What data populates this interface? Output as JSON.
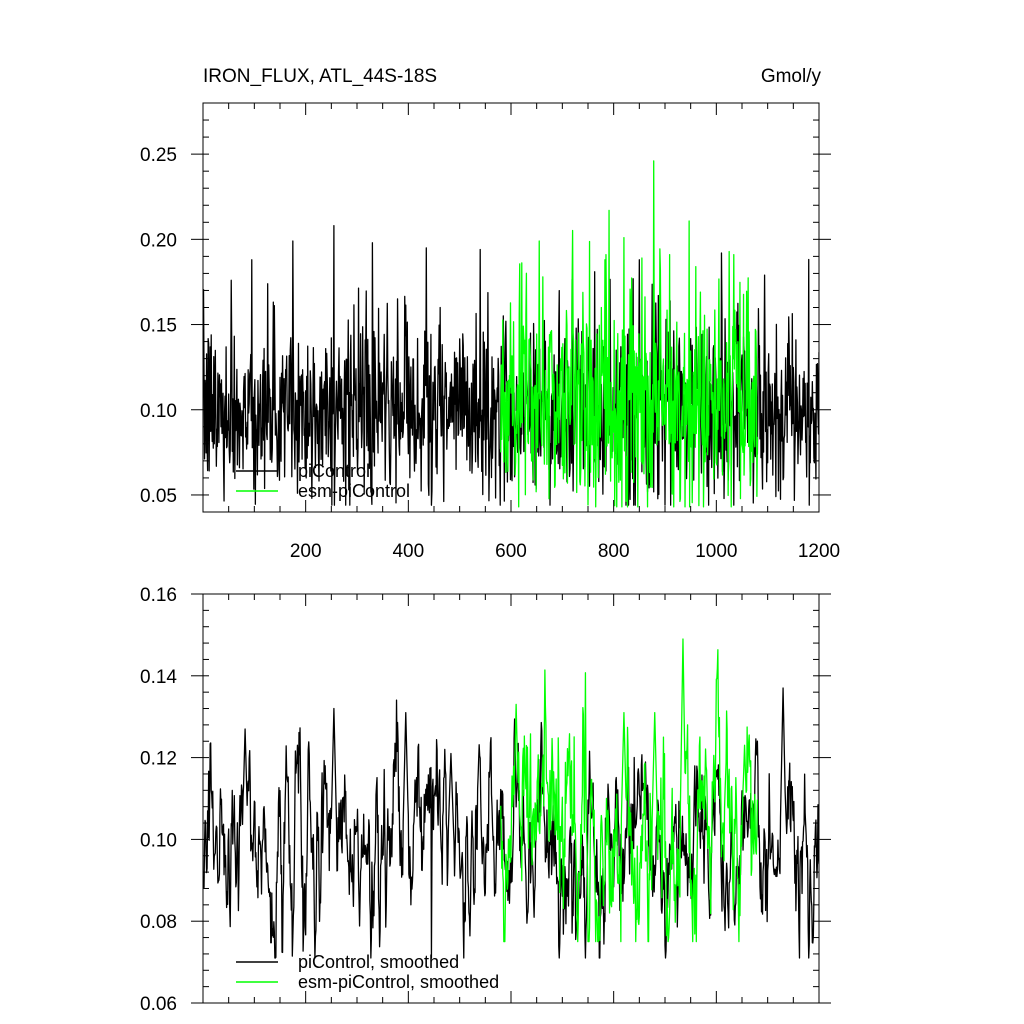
{
  "chart_data": [
    {
      "type": "line",
      "title": "IRON_FLUX, ATL_44S-18S",
      "units": "Gmol/y",
      "xlabel": "",
      "ylabel": "",
      "xlim": [
        0,
        1200
      ],
      "ylim": [
        0.04,
        0.28
      ],
      "x_ticks": [
        200,
        400,
        600,
        800,
        1000,
        1200
      ],
      "y_ticks": [
        0.05,
        0.1,
        0.15,
        0.2,
        0.25
      ],
      "y_tick_labels": [
        "0.05",
        "0.10",
        "0.15",
        "0.20",
        "0.25"
      ],
      "legend_placement": "bottom-left",
      "grid": false,
      "series": [
        {
          "name": "piControl",
          "color": "#000000",
          "x_range": [
            1,
            1200
          ],
          "mean": 0.1,
          "min": 0.044,
          "max": 0.208,
          "peaks": [
            {
              "x": 95,
              "y": 0.188
            },
            {
              "x": 175,
              "y": 0.199
            },
            {
              "x": 255,
              "y": 0.208
            },
            {
              "x": 330,
              "y": 0.198
            },
            {
              "x": 435,
              "y": 0.195
            },
            {
              "x": 540,
              "y": 0.194
            },
            {
              "x": 850,
              "y": 0.188
            },
            {
              "x": 1010,
              "y": 0.192
            }
          ]
        },
        {
          "name": "esm-piControl",
          "color": "#00ff00",
          "x_range": [
            580,
            1080
          ],
          "mean": 0.105,
          "min": 0.043,
          "max": 0.246,
          "peaks": [
            {
              "x": 655,
              "y": 0.199
            },
            {
              "x": 785,
              "y": 0.191
            },
            {
              "x": 820,
              "y": 0.201
            },
            {
              "x": 855,
              "y": 0.189
            },
            {
              "x": 878,
              "y": 0.246
            },
            {
              "x": 960,
              "y": 0.184
            }
          ]
        }
      ]
    },
    {
      "type": "line",
      "title": "",
      "xlabel": "",
      "ylabel": "",
      "xlim": [
        0,
        1200
      ],
      "ylim": [
        0.06,
        0.16
      ],
      "y_ticks": [
        0.06,
        0.08,
        0.1,
        0.12,
        0.14,
        0.16
      ],
      "y_tick_labels": [
        "0.06",
        "0.08",
        "0.10",
        "0.12",
        "0.14",
        "0.16"
      ],
      "legend_placement": "bottom-left",
      "grid": false,
      "series": [
        {
          "name": "piControl, smoothed",
          "color": "#000000",
          "x_range": [
            1,
            1200
          ],
          "mean": 0.099,
          "min": 0.071,
          "max": 0.137,
          "peaks": [
            {
              "x": 82,
              "y": 0.127
            },
            {
              "x": 255,
              "y": 0.132
            },
            {
              "x": 395,
              "y": 0.131
            },
            {
              "x": 483,
              "y": 0.121
            },
            {
              "x": 1130,
              "y": 0.137
            }
          ]
        },
        {
          "name": "esm-piControl, smoothed",
          "color": "#00ff00",
          "x_range": [
            580,
            1080
          ],
          "mean": 0.1,
          "min": 0.075,
          "max": 0.149,
          "peaks": [
            {
              "x": 610,
              "y": 0.133
            },
            {
              "x": 820,
              "y": 0.131
            },
            {
              "x": 880,
              "y": 0.131
            },
            {
              "x": 935,
              "y": 0.149
            },
            {
              "x": 1055,
              "y": 0.123
            }
          ]
        }
      ]
    }
  ]
}
